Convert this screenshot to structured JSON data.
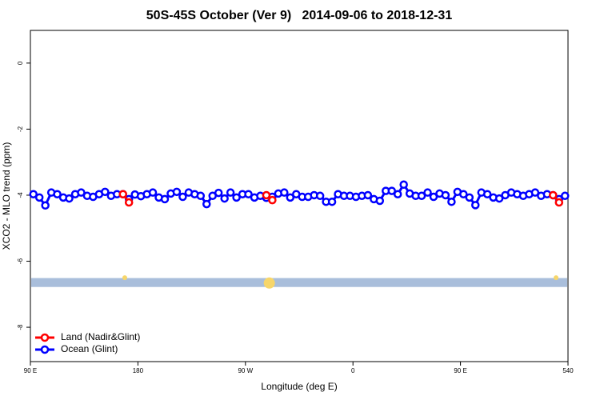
{
  "chart_data": {
    "type": "line",
    "title": "50S-45S October (Ver 9)   2014-09-06 to 2018-12-31",
    "xlabel": "Longitude (deg E)",
    "ylabel": "XCO2 - MLO trend (ppm)",
    "xlim": [
      90,
      540
    ],
    "ylim": [
      -9.04,
      0.99
    ],
    "xticks": [
      {
        "value": 90,
        "label": "90 E"
      },
      180,
      {
        "value": 270,
        "label": "90 W"
      },
      {
        "value": 360,
        "label": "0"
      },
      {
        "value": 450,
        "label": "90 E"
      },
      540
    ],
    "yticks": [
      0,
      -2,
      -4,
      -6,
      -8
    ],
    "legend": "bottom-left",
    "x": [
      92.5,
      97.5,
      102.5,
      107.5,
      112.5,
      117.5,
      122.5,
      127.5,
      132.5,
      137.5,
      142.5,
      147.5,
      152.5,
      157.5,
      162.5,
      167.5,
      172.5,
      177.5,
      182.5,
      187.5,
      192.5,
      197.5,
      202.5,
      207.5,
      212.5,
      217.5,
      222.5,
      227.5,
      232.5,
      237.5,
      242.5,
      247.5,
      252.5,
      257.5,
      262.5,
      267.5,
      272.5,
      277.5,
      282.5,
      287.5,
      292.5,
      297.5,
      302.5,
      307.5,
      312.5,
      317.5,
      322.5,
      327.5,
      332.5,
      337.5,
      342.5,
      347.5,
      352.5,
      357.5,
      362.5,
      367.5,
      372.5,
      377.5,
      382.5,
      387.5,
      392.5,
      397.5,
      402.5,
      407.5,
      412.5,
      417.5,
      422.5,
      427.5,
      432.5,
      437.5,
      442.5,
      447.5,
      452.5,
      457.5,
      462.5,
      467.5,
      472.5,
      477.5,
      482.5,
      487.5,
      492.5,
      497.5,
      502.5,
      507.5,
      512.5,
      517.5,
      522.5,
      527.5,
      532.5,
      537.5
    ],
    "series": [
      {
        "name": "Ocean (Glint)",
        "color": "#0000ff",
        "values": [
          -3.97,
          -4.07,
          -4.31,
          -3.92,
          -3.97,
          -4.07,
          -4.1,
          -3.97,
          -3.92,
          -4.02,
          -4.05,
          -3.97,
          -3.9,
          -4.02,
          -3.97,
          -3.97,
          -4.12,
          -3.98,
          -4.03,
          -3.97,
          -3.92,
          -4.07,
          -4.12,
          -3.95,
          -3.9,
          -4.05,
          -3.92,
          -3.97,
          -4.02,
          -4.27,
          -4.02,
          -3.93,
          -4.1,
          -3.92,
          -4.07,
          -3.97,
          -3.97,
          -4.07,
          -4.02,
          -4.08,
          -4.05,
          -3.95,
          -3.92,
          -4.07,
          -3.97,
          -4.05,
          -4.05,
          -4.0,
          -4.02,
          -4.2,
          -4.2,
          -3.97,
          -4.02,
          -4.02,
          -4.05,
          -4.02,
          -4.0,
          -4.12,
          -4.17,
          -3.87,
          -3.87,
          -3.97,
          -3.68,
          -3.95,
          -4.02,
          -4.02,
          -3.92,
          -4.05,
          -3.95,
          -4.0,
          -4.2,
          -3.9,
          -3.97,
          -4.07,
          -4.3,
          -3.92,
          -3.97,
          -4.07,
          -4.1,
          -4.0,
          -3.92,
          -3.97,
          -4.02,
          -3.97,
          -3.92,
          -4.02,
          -3.97,
          -4.0,
          -4.12,
          -4.02
        ]
      },
      {
        "name": "Land (Nadir&Glint)",
        "color": "#ff0000",
        "values": [
          null,
          null,
          null,
          null,
          null,
          null,
          null,
          null,
          null,
          null,
          null,
          null,
          null,
          null,
          null,
          -3.97,
          -4.22,
          null,
          null,
          null,
          null,
          null,
          null,
          null,
          null,
          null,
          null,
          null,
          null,
          null,
          null,
          null,
          null,
          null,
          null,
          null,
          null,
          null,
          null,
          -4.0,
          -4.15,
          null,
          null,
          null,
          null,
          null,
          null,
          null,
          null,
          null,
          null,
          null,
          null,
          null,
          null,
          null,
          null,
          null,
          null,
          null,
          null,
          null,
          null,
          null,
          null,
          null,
          null,
          null,
          null,
          null,
          null,
          null,
          null,
          null,
          null,
          null,
          null,
          null,
          null,
          null,
          null,
          null,
          null,
          null,
          null,
          null,
          null,
          -4.0,
          -4.22,
          null
        ]
      }
    ],
    "band": {
      "range": [
        -6.78,
        -6.51
      ],
      "color": "#a9bedb"
    },
    "highlights": {
      "color": "#f7d66a",
      "x": [
        169,
        290,
        530
      ],
      "values": [
        -6.5,
        -6.66,
        -6.5
      ],
      "sizes": [
        3,
        7,
        3
      ]
    }
  }
}
